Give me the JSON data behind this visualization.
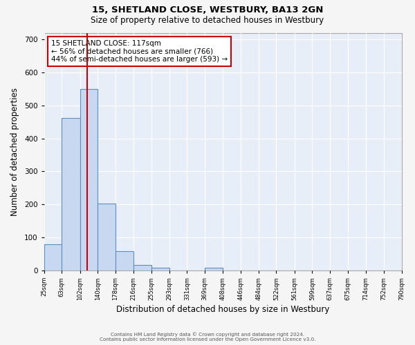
{
  "title": "15, SHETLAND CLOSE, WESTBURY, BA13 2GN",
  "subtitle": "Size of property relative to detached houses in Westbury",
  "xlabel": "Distribution of detached houses by size in Westbury",
  "ylabel": "Number of detached properties",
  "footer_line1": "Contains HM Land Registry data © Crown copyright and database right 2024.",
  "footer_line2": "Contains public sector information licensed under the Open Government Licence v3.0.",
  "bin_edges": [
    25,
    63,
    102,
    140,
    178,
    216,
    255,
    293,
    331,
    369,
    408,
    446,
    484,
    522,
    561,
    599,
    637,
    675,
    714,
    752,
    790
  ],
  "bin_labels": [
    "25sqm",
    "63sqm",
    "102sqm",
    "140sqm",
    "178sqm",
    "216sqm",
    "255sqm",
    "293sqm",
    "331sqm",
    "369sqm",
    "408sqm",
    "446sqm",
    "484sqm",
    "522sqm",
    "561sqm",
    "599sqm",
    "637sqm",
    "675sqm",
    "714sqm",
    "752sqm",
    "790sqm"
  ],
  "counts": [
    80,
    462,
    549,
    203,
    59,
    17,
    9,
    0,
    0,
    8,
    0,
    0,
    0,
    0,
    0,
    0,
    0,
    0,
    0,
    0
  ],
  "bar_color": "#c8d8f0",
  "bar_edge_color": "#5a8fc0",
  "bg_color": "#e8eef8",
  "grid_color": "#ffffff",
  "vline_x": 117,
  "vline_color": "#cc0000",
  "annotation_text": "15 SHETLAND CLOSE: 117sqm\n← 56% of detached houses are smaller (766)\n44% of semi-detached houses are larger (593) →",
  "ylim": [
    0,
    720
  ],
  "yticks": [
    0,
    100,
    200,
    300,
    400,
    500,
    600,
    700
  ],
  "fig_width": 6.0,
  "fig_height": 5.0,
  "fig_dpi": 100
}
